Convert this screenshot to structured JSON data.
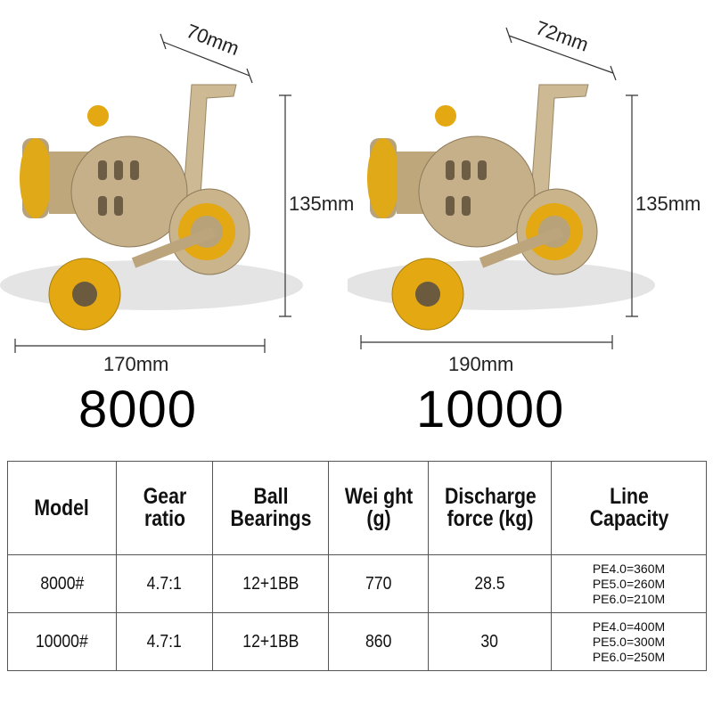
{
  "products": [
    {
      "model": "8000",
      "width": "70mm",
      "height": "135mm",
      "length": "170mm"
    },
    {
      "model": "10000",
      "width": "72mm",
      "height": "135mm",
      "length": "190mm"
    }
  ],
  "colors": {
    "body": "#c9b48c",
    "gold": "#e3a812",
    "text": "#000000",
    "border": "#555555"
  },
  "table": {
    "headers": [
      "Model",
      "Gear ratio",
      "Ball Bearings",
      "Wei ght (g)",
      "Discharge force (kg)",
      "Line Capacity"
    ],
    "rows": [
      {
        "model": "8000#",
        "gear_ratio": "4.7:1",
        "ball_bearings": "12+1BB",
        "weight": "770",
        "discharge_force": "28.5",
        "line_capacity": [
          "PE4.0=360M",
          "PE5.0=260M",
          "PE6.0=210M"
        ]
      },
      {
        "model": "10000#",
        "gear_ratio": "4.7:1",
        "ball_bearings": "12+1BB",
        "weight": "860",
        "discharge_force": "30",
        "line_capacity": [
          "PE4.0=400M",
          "PE5.0=300M",
          "PE6.0=250M"
        ]
      }
    ]
  }
}
